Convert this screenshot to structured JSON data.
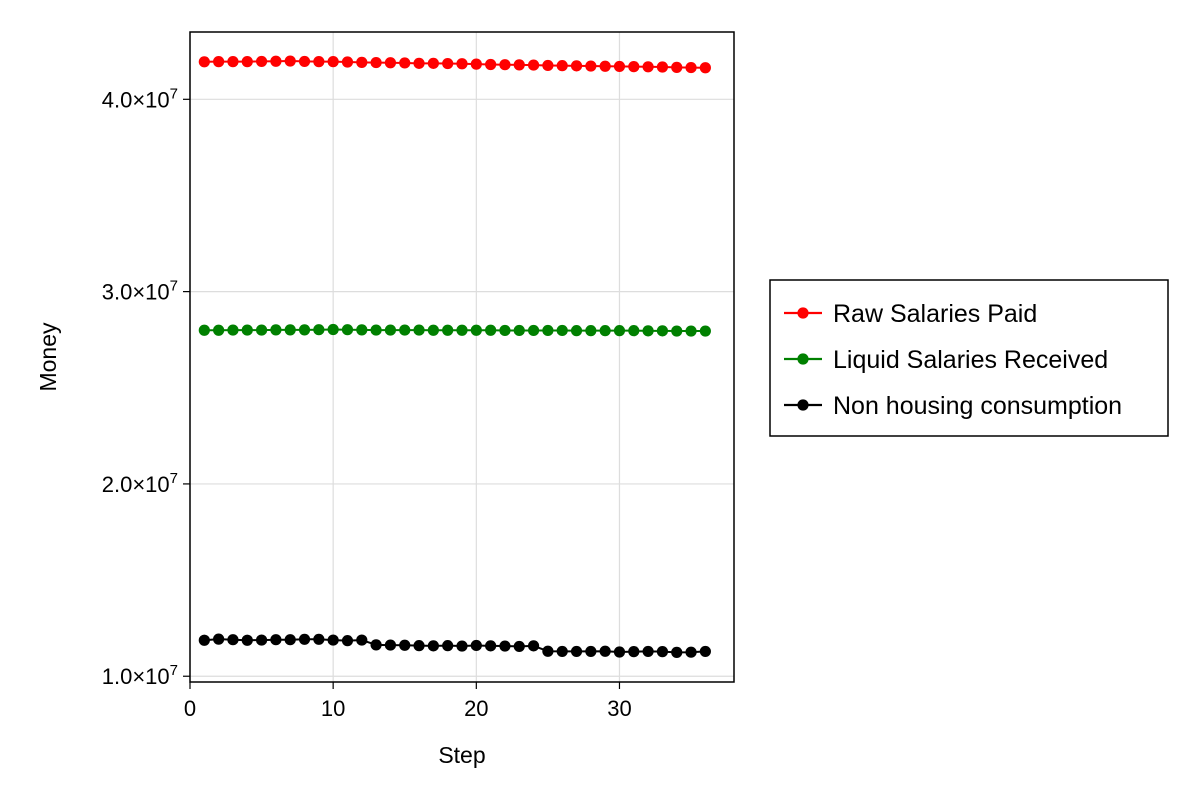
{
  "chart_data": {
    "type": "scatter",
    "title": "",
    "xlabel": "Step",
    "ylabel": "Money",
    "xlim": [
      0,
      38
    ],
    "ylim": [
      9700000,
      43500000
    ],
    "grid": true,
    "legend_position": "right",
    "x_ticks": [
      0,
      10,
      20,
      30
    ],
    "y_ticks": [
      {
        "value": 10000000,
        "mantissa": "1.0×10",
        "exp": "7"
      },
      {
        "value": 20000000,
        "mantissa": "2.0×10",
        "exp": "7"
      },
      {
        "value": 30000000,
        "mantissa": "3.0×10",
        "exp": "7"
      },
      {
        "value": 40000000,
        "mantissa": "4.0×10",
        "exp": "7"
      }
    ],
    "x": [
      1,
      2,
      3,
      4,
      5,
      6,
      7,
      8,
      9,
      10,
      11,
      12,
      13,
      14,
      15,
      16,
      17,
      18,
      19,
      20,
      21,
      22,
      23,
      24,
      25,
      26,
      27,
      28,
      29,
      30,
      31,
      32,
      33,
      34,
      35,
      36
    ],
    "series": [
      {
        "name": "Raw Salaries Paid",
        "color": "#ff0000",
        "values": [
          41950000,
          41960000,
          41960000,
          41960000,
          41970000,
          41980000,
          41990000,
          41970000,
          41960000,
          41960000,
          41940000,
          41920000,
          41910000,
          41900000,
          41890000,
          41870000,
          41870000,
          41860000,
          41850000,
          41830000,
          41810000,
          41800000,
          41790000,
          41780000,
          41760000,
          41750000,
          41740000,
          41730000,
          41720000,
          41710000,
          41700000,
          41690000,
          41680000,
          41660000,
          41650000,
          41640000
        ]
      },
      {
        "name": "Liquid Salaries Received",
        "color": "#008000",
        "values": [
          27990000,
          27990000,
          28000000,
          28000000,
          28000000,
          28010000,
          28010000,
          28010000,
          28020000,
          28030000,
          28020000,
          28010000,
          28000000,
          28000000,
          28000000,
          28000000,
          27990000,
          27990000,
          27990000,
          27990000,
          27990000,
          27980000,
          27980000,
          27980000,
          27980000,
          27980000,
          27970000,
          27970000,
          27970000,
          27970000,
          27970000,
          27960000,
          27960000,
          27950000,
          27950000,
          27950000
        ]
      },
      {
        "name": "Non housing consumption",
        "color": "#000000",
        "values": [
          11870000,
          11930000,
          11900000,
          11870000,
          11880000,
          11900000,
          11900000,
          11920000,
          11920000,
          11880000,
          11850000,
          11880000,
          11630000,
          11620000,
          11610000,
          11590000,
          11580000,
          11590000,
          11570000,
          11600000,
          11580000,
          11570000,
          11550000,
          11580000,
          11300000,
          11290000,
          11290000,
          11290000,
          11300000,
          11260000,
          11280000,
          11290000,
          11280000,
          11240000,
          11250000,
          11290000
        ]
      }
    ]
  }
}
